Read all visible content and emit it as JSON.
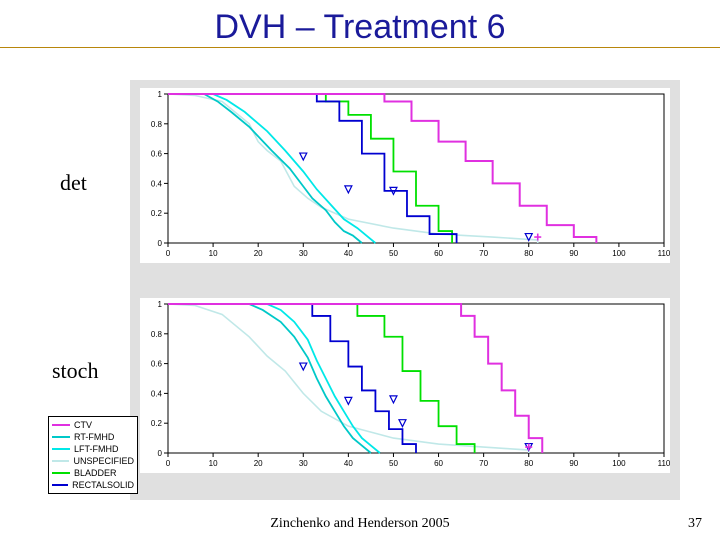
{
  "title": {
    "text": "DVH – Treatment 6",
    "color": "#1a1a9a",
    "fontsize": 34
  },
  "panel_bg": "#e0e0e0",
  "labels": {
    "det": {
      "text": "det",
      "fontsize": 22,
      "color": "#000000"
    },
    "stoch": {
      "text": "stoch",
      "fontsize": 22,
      "color": "#000000"
    }
  },
  "footer": {
    "text": "Zinchenko and Henderson 2005",
    "fontsize": 14,
    "color": "#000000"
  },
  "page": {
    "text": "37",
    "fontsize": 14,
    "color": "#000000"
  },
  "legend": {
    "fontsize": 9,
    "items": [
      {
        "label": "CTV",
        "color": "#e030e0"
      },
      {
        "label": "RT-FMHD",
        "color": "#00c8c8"
      },
      {
        "label": "LFT-FMHD",
        "color": "#00e8e8"
      },
      {
        "label": "UNSPECIFIED",
        "color": "#c0e8e8"
      },
      {
        "label": "BLADDER",
        "color": "#00e000"
      },
      {
        "label": "RECTALSOLID",
        "color": "#0000d0"
      }
    ]
  },
  "axis": {
    "xlim": [
      0,
      110
    ],
    "ylim": [
      0,
      1
    ],
    "xticks": [
      0,
      10,
      20,
      30,
      40,
      50,
      60,
      70,
      80,
      90,
      100,
      110
    ],
    "yticks": [
      0,
      0.2,
      0.4,
      0.6,
      0.8,
      1
    ],
    "axis_color": "#000000",
    "tick_fontsize": 8
  },
  "triangle_marker": {
    "stroke": "#0000d0",
    "size": 7
  },
  "plus_marker": {
    "stroke": "#e030e0",
    "size": 7
  },
  "charts": {
    "det": {
      "series": [
        {
          "color": "#c0e8e8",
          "width": 1.6,
          "pts": [
            [
              0,
              1.0
            ],
            [
              6,
              0.99
            ],
            [
              12,
              0.95
            ],
            [
              18,
              0.8
            ],
            [
              20,
              0.68
            ],
            [
              22,
              0.62
            ],
            [
              25,
              0.55
            ],
            [
              28,
              0.38
            ],
            [
              31,
              0.3
            ],
            [
              34,
              0.24
            ],
            [
              40,
              0.16
            ],
            [
              50,
              0.1
            ],
            [
              60,
              0.06
            ],
            [
              72,
              0.04
            ],
            [
              77,
              0.03
            ],
            [
              82,
              0.02
            ],
            [
              82,
              0.0
            ]
          ]
        },
        {
          "color": "#00c8c8",
          "width": 1.8,
          "pts": [
            [
              0,
              1.0
            ],
            [
              8,
              1.0
            ],
            [
              11,
              0.95
            ],
            [
              14,
              0.88
            ],
            [
              18,
              0.78
            ],
            [
              23,
              0.62
            ],
            [
              27,
              0.5
            ],
            [
              30,
              0.38
            ],
            [
              32,
              0.3
            ],
            [
              35,
              0.22
            ],
            [
              37,
              0.14
            ],
            [
              39,
              0.08
            ],
            [
              41,
              0.05
            ],
            [
              43,
              0.0
            ]
          ]
        },
        {
          "color": "#00e8e8",
          "width": 1.8,
          "pts": [
            [
              0,
              1.0
            ],
            [
              10,
              1.0
            ],
            [
              13,
              0.96
            ],
            [
              17,
              0.88
            ],
            [
              22,
              0.75
            ],
            [
              26,
              0.62
            ],
            [
              30,
              0.48
            ],
            [
              33,
              0.36
            ],
            [
              36,
              0.26
            ],
            [
              39,
              0.16
            ],
            [
              42,
              0.1
            ],
            [
              44,
              0.05
            ],
            [
              46,
              0.0
            ]
          ]
        },
        {
          "color": "#00e000",
          "width": 1.8,
          "pts": [
            [
              0,
              1.0
            ],
            [
              35,
              1.0
            ],
            [
              35,
              0.95
            ],
            [
              40,
              0.95
            ],
            [
              40,
              0.86
            ],
            [
              45,
              0.86
            ],
            [
              45,
              0.7
            ],
            [
              50,
              0.7
            ],
            [
              50,
              0.48
            ],
            [
              55,
              0.48
            ],
            [
              55,
              0.25
            ],
            [
              60,
              0.25
            ],
            [
              60,
              0.08
            ],
            [
              63,
              0.08
            ],
            [
              63,
              0.0
            ]
          ]
        },
        {
          "color": "#0000d0",
          "width": 1.8,
          "pts": [
            [
              0,
              1.0
            ],
            [
              33,
              1.0
            ],
            [
              33,
              0.95
            ],
            [
              38,
              0.95
            ],
            [
              38,
              0.82
            ],
            [
              43,
              0.82
            ],
            [
              43,
              0.6
            ],
            [
              48,
              0.6
            ],
            [
              48,
              0.35
            ],
            [
              53,
              0.35
            ],
            [
              53,
              0.18
            ],
            [
              58,
              0.18
            ],
            [
              58,
              0.06
            ],
            [
              64,
              0.06
            ],
            [
              64,
              0.0
            ]
          ]
        },
        {
          "color": "#e030e0",
          "width": 2.0,
          "pts": [
            [
              0,
              1.0
            ],
            [
              48,
              1.0
            ],
            [
              48,
              0.95
            ],
            [
              54,
              0.95
            ],
            [
              54,
              0.82
            ],
            [
              60,
              0.82
            ],
            [
              60,
              0.68
            ],
            [
              66,
              0.68
            ],
            [
              66,
              0.55
            ],
            [
              72,
              0.55
            ],
            [
              72,
              0.4
            ],
            [
              78,
              0.4
            ],
            [
              78,
              0.25
            ],
            [
              84,
              0.25
            ],
            [
              84,
              0.12
            ],
            [
              90,
              0.12
            ],
            [
              90,
              0.04
            ],
            [
              95,
              0.04
            ],
            [
              95,
              0.0
            ]
          ]
        }
      ],
      "triangles": [
        [
          30,
          0.58
        ],
        [
          40,
          0.36
        ],
        [
          50,
          0.35
        ],
        [
          80,
          0.04
        ]
      ],
      "plus": [
        82,
        0.04
      ]
    },
    "stoch": {
      "series": [
        {
          "color": "#c0e8e8",
          "width": 1.6,
          "pts": [
            [
              0,
              1.0
            ],
            [
              6,
              0.99
            ],
            [
              12,
              0.93
            ],
            [
              18,
              0.78
            ],
            [
              22,
              0.65
            ],
            [
              26,
              0.55
            ],
            [
              30,
              0.4
            ],
            [
              34,
              0.28
            ],
            [
              40,
              0.18
            ],
            [
              50,
              0.1
            ],
            [
              60,
              0.06
            ],
            [
              70,
              0.04
            ],
            [
              75,
              0.03
            ],
            [
              80,
              0.02
            ],
            [
              80,
              0.0
            ]
          ]
        },
        {
          "color": "#00c8c8",
          "width": 1.8,
          "pts": [
            [
              0,
              1.0
            ],
            [
              18,
              1.0
            ],
            [
              21,
              0.96
            ],
            [
              25,
              0.88
            ],
            [
              28,
              0.78
            ],
            [
              31,
              0.64
            ],
            [
              33,
              0.5
            ],
            [
              35,
              0.38
            ],
            [
              37,
              0.28
            ],
            [
              39,
              0.18
            ],
            [
              41,
              0.1
            ],
            [
              43,
              0.05
            ],
            [
              45,
              0.0
            ]
          ]
        },
        {
          "color": "#00e8e8",
          "width": 1.8,
          "pts": [
            [
              0,
              1.0
            ],
            [
              22,
              1.0
            ],
            [
              25,
              0.96
            ],
            [
              28,
              0.88
            ],
            [
              31,
              0.76
            ],
            [
              33,
              0.62
            ],
            [
              35,
              0.5
            ],
            [
              37,
              0.38
            ],
            [
              39,
              0.28
            ],
            [
              41,
              0.18
            ],
            [
              43,
              0.1
            ],
            [
              45,
              0.05
            ],
            [
              47,
              0.0
            ]
          ]
        },
        {
          "color": "#00e000",
          "width": 1.8,
          "pts": [
            [
              0,
              1.0
            ],
            [
              42,
              1.0
            ],
            [
              42,
              0.92
            ],
            [
              48,
              0.92
            ],
            [
              48,
              0.78
            ],
            [
              52,
              0.78
            ],
            [
              52,
              0.55
            ],
            [
              56,
              0.55
            ],
            [
              56,
              0.35
            ],
            [
              60,
              0.35
            ],
            [
              60,
              0.18
            ],
            [
              64,
              0.18
            ],
            [
              64,
              0.06
            ],
            [
              68,
              0.06
            ],
            [
              68,
              0.0
            ]
          ]
        },
        {
          "color": "#0000d0",
          "width": 1.8,
          "pts": [
            [
              0,
              1.0
            ],
            [
              32,
              1.0
            ],
            [
              32,
              0.92
            ],
            [
              36,
              0.92
            ],
            [
              36,
              0.75
            ],
            [
              40,
              0.75
            ],
            [
              40,
              0.58
            ],
            [
              43,
              0.58
            ],
            [
              43,
              0.42
            ],
            [
              46,
              0.42
            ],
            [
              46,
              0.28
            ],
            [
              49,
              0.28
            ],
            [
              49,
              0.16
            ],
            [
              52,
              0.16
            ],
            [
              52,
              0.06
            ],
            [
              55,
              0.06
            ],
            [
              55,
              0.0
            ]
          ]
        },
        {
          "color": "#e030e0",
          "width": 2.0,
          "pts": [
            [
              0,
              1.0
            ],
            [
              65,
              1.0
            ],
            [
              65,
              0.92
            ],
            [
              68,
              0.92
            ],
            [
              68,
              0.78
            ],
            [
              71,
              0.78
            ],
            [
              71,
              0.6
            ],
            [
              74,
              0.6
            ],
            [
              74,
              0.42
            ],
            [
              77,
              0.42
            ],
            [
              77,
              0.25
            ],
            [
              80,
              0.25
            ],
            [
              80,
              0.1
            ],
            [
              83,
              0.1
            ],
            [
              83,
              0.0
            ]
          ]
        }
      ],
      "triangles": [
        [
          30,
          0.58
        ],
        [
          40,
          0.35
        ],
        [
          50,
          0.36
        ],
        [
          52,
          0.2
        ],
        [
          80,
          0.04
        ]
      ],
      "plus": [
        80,
        0.04
      ]
    }
  }
}
